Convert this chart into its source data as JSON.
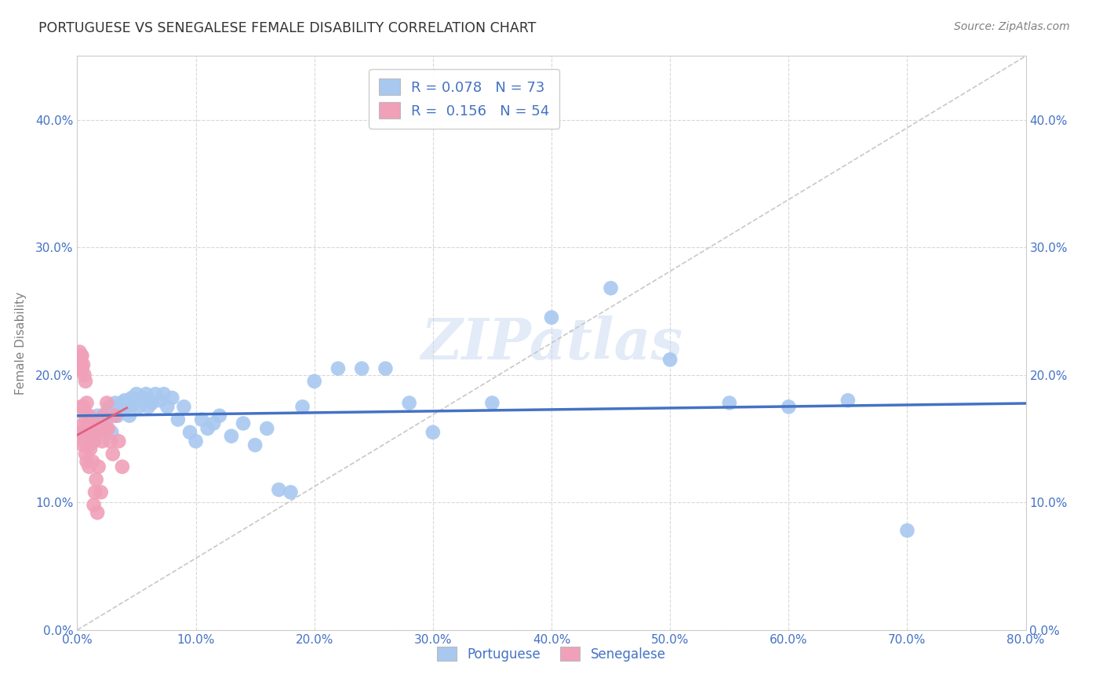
{
  "title": "PORTUGUESE VS SENEGALESE FEMALE DISABILITY CORRELATION CHART",
  "source": "Source: ZipAtlas.com",
  "ylabel": "Female Disability",
  "watermark": "ZIPatlas",
  "xlim": [
    0.0,
    0.8
  ],
  "ylim": [
    0.0,
    0.45
  ],
  "xticks": [
    0.0,
    0.1,
    0.2,
    0.3,
    0.4,
    0.5,
    0.6,
    0.7,
    0.8
  ],
  "yticks": [
    0.0,
    0.1,
    0.2,
    0.3,
    0.4
  ],
  "portuguese_R": 0.078,
  "portuguese_N": 73,
  "senegalese_R": 0.156,
  "senegalese_N": 54,
  "portuguese_color": "#a8c8f0",
  "senegalese_color": "#f0a0b8",
  "portuguese_line_color": "#4472c4",
  "senegalese_line_color": "#e06080",
  "diagonal_line_color": "#c8c8c8",
  "background_color": "#ffffff",
  "grid_color": "#d8d8d8",
  "title_color": "#404040",
  "axis_label_color": "#808080",
  "tick_color": "#4472c4",
  "portuguese_x": [
    0.004,
    0.008,
    0.009,
    0.01,
    0.011,
    0.012,
    0.013,
    0.014,
    0.015,
    0.016,
    0.017,
    0.018,
    0.019,
    0.02,
    0.021,
    0.022,
    0.023,
    0.024,
    0.025,
    0.026,
    0.027,
    0.028,
    0.029,
    0.03,
    0.032,
    0.034,
    0.036,
    0.038,
    0.04,
    0.042,
    0.044,
    0.046,
    0.048,
    0.05,
    0.052,
    0.055,
    0.058,
    0.06,
    0.063,
    0.066,
    0.07,
    0.073,
    0.076,
    0.08,
    0.085,
    0.09,
    0.095,
    0.1,
    0.105,
    0.11,
    0.115,
    0.12,
    0.13,
    0.14,
    0.15,
    0.16,
    0.17,
    0.18,
    0.19,
    0.2,
    0.22,
    0.24,
    0.26,
    0.28,
    0.3,
    0.35,
    0.4,
    0.45,
    0.5,
    0.55,
    0.6,
    0.65,
    0.7
  ],
  "portuguese_y": [
    0.155,
    0.15,
    0.16,
    0.145,
    0.155,
    0.158,
    0.152,
    0.148,
    0.162,
    0.155,
    0.168,
    0.155,
    0.16,
    0.165,
    0.155,
    0.158,
    0.162,
    0.17,
    0.165,
    0.168,
    0.175,
    0.172,
    0.155,
    0.175,
    0.178,
    0.168,
    0.172,
    0.178,
    0.18,
    0.175,
    0.168,
    0.182,
    0.178,
    0.185,
    0.175,
    0.182,
    0.185,
    0.175,
    0.178,
    0.185,
    0.18,
    0.185,
    0.175,
    0.182,
    0.165,
    0.175,
    0.155,
    0.148,
    0.165,
    0.158,
    0.162,
    0.168,
    0.152,
    0.162,
    0.145,
    0.158,
    0.11,
    0.108,
    0.175,
    0.195,
    0.205,
    0.205,
    0.205,
    0.178,
    0.155,
    0.178,
    0.245,
    0.268,
    0.212,
    0.178,
    0.175,
    0.18,
    0.078
  ],
  "senegalese_x": [
    0.001,
    0.001,
    0.002,
    0.002,
    0.003,
    0.003,
    0.003,
    0.004,
    0.004,
    0.004,
    0.005,
    0.005,
    0.005,
    0.006,
    0.006,
    0.006,
    0.007,
    0.007,
    0.007,
    0.008,
    0.008,
    0.008,
    0.009,
    0.009,
    0.01,
    0.01,
    0.01,
    0.011,
    0.011,
    0.012,
    0.012,
    0.013,
    0.013,
    0.014,
    0.014,
    0.015,
    0.015,
    0.016,
    0.016,
    0.017,
    0.018,
    0.019,
    0.02,
    0.021,
    0.022,
    0.023,
    0.024,
    0.025,
    0.026,
    0.028,
    0.03,
    0.032,
    0.035,
    0.038
  ],
  "senegalese_y": [
    0.205,
    0.155,
    0.218,
    0.21,
    0.215,
    0.208,
    0.175,
    0.215,
    0.205,
    0.16,
    0.208,
    0.175,
    0.145,
    0.2,
    0.172,
    0.148,
    0.195,
    0.165,
    0.138,
    0.178,
    0.158,
    0.132,
    0.162,
    0.148,
    0.168,
    0.155,
    0.128,
    0.158,
    0.142,
    0.162,
    0.148,
    0.155,
    0.132,
    0.148,
    0.098,
    0.108,
    0.158,
    0.118,
    0.155,
    0.092,
    0.128,
    0.158,
    0.108,
    0.148,
    0.168,
    0.158,
    0.158,
    0.178,
    0.158,
    0.148,
    0.138,
    0.168,
    0.148,
    0.128
  ]
}
